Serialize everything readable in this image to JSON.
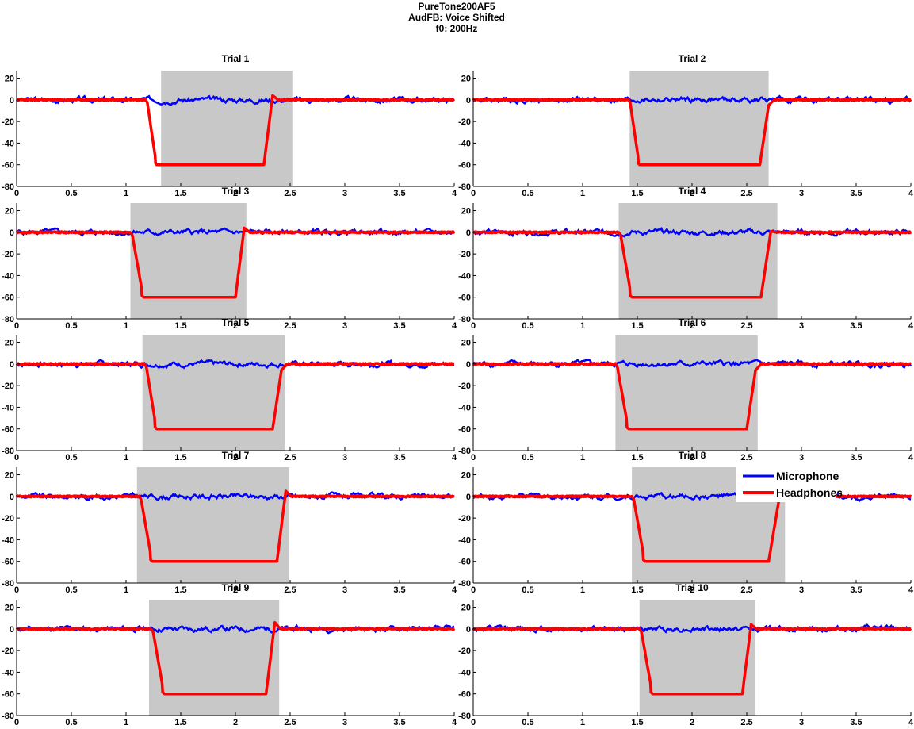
{
  "figure_title": [
    "PureTone200AF5",
    "AudFB: Voice Shifted",
    "f0: 200Hz"
  ],
  "legend": {
    "items": [
      {
        "label": "Microphone",
        "color": "#0000ff"
      },
      {
        "label": "Headphones",
        "color": "#ff0000"
      }
    ],
    "location": "inside trial 8 panel, top-right"
  },
  "chart_data": [
    {
      "type": "line",
      "title": "Trial 1",
      "xlim": [
        0,
        4
      ],
      "ylim": [
        -80,
        27
      ],
      "xticks": [
        "0",
        "0.5",
        "1",
        "1.5",
        "2",
        "2.5",
        "3",
        "3.5",
        "4"
      ],
      "yticks": [
        "20",
        "0",
        "-20",
        "-40",
        "-60",
        "-80"
      ],
      "shaded_x": [
        1.32,
        2.52
      ],
      "headphones": {
        "drop_start": 1.18,
        "drop_end": 1.28,
        "rise_start": 2.26,
        "rise_end": 2.34,
        "level": -60,
        "overshoot": 4
      },
      "series": [
        {
          "name": "Microphone",
          "color": "#0000ff"
        },
        {
          "name": "Headphones",
          "color": "#ff0000"
        }
      ]
    },
    {
      "type": "line",
      "title": "Trial 2",
      "xlim": [
        0,
        4
      ],
      "ylim": [
        -80,
        27
      ],
      "xticks": [
        "0",
        "0.5",
        "1",
        "1.5",
        "2",
        "2.5",
        "3",
        "3.5",
        "4"
      ],
      "yticks": [
        "20",
        "0",
        "-20",
        "-40",
        "-60",
        "-80"
      ],
      "shaded_x": [
        1.43,
        2.7
      ],
      "headphones": {
        "drop_start": 1.42,
        "drop_end": 1.52,
        "rise_start": 2.62,
        "rise_end": 2.7,
        "level": -60,
        "overshoot": -5
      },
      "series": [
        {
          "name": "Microphone",
          "color": "#0000ff"
        },
        {
          "name": "Headphones",
          "color": "#ff0000"
        }
      ]
    },
    {
      "type": "line",
      "title": "Trial 3",
      "xlim": [
        0,
        4
      ],
      "ylim": [
        -80,
        27
      ],
      "xticks": [
        "0",
        "0.5",
        "1",
        "1.5",
        "2",
        "2.5",
        "3",
        "3.5",
        "4"
      ],
      "yticks": [
        "20",
        "0",
        "-20",
        "-40",
        "-60",
        "-80"
      ],
      "shaded_x": [
        1.04,
        2.1
      ],
      "headphones": {
        "drop_start": 1.04,
        "drop_end": 1.16,
        "rise_start": 2.0,
        "rise_end": 2.08,
        "level": -60,
        "overshoot": 4
      },
      "series": [
        {
          "name": "Microphone",
          "color": "#0000ff"
        },
        {
          "name": "Headphones",
          "color": "#ff0000"
        }
      ]
    },
    {
      "type": "line",
      "title": "Trial 4",
      "xlim": [
        0,
        4
      ],
      "ylim": [
        -80,
        27
      ],
      "xticks": [
        "0",
        "0.5",
        "1",
        "1.5",
        "2",
        "2.5",
        "3",
        "3.5",
        "4"
      ],
      "yticks": [
        "20",
        "0",
        "-20",
        "-40",
        "-60",
        "-80"
      ],
      "shaded_x": [
        1.33,
        2.78
      ],
      "headphones": {
        "drop_start": 1.33,
        "drop_end": 1.45,
        "rise_start": 2.63,
        "rise_end": 2.72,
        "level": -60,
        "overshoot": 1
      },
      "series": [
        {
          "name": "Microphone",
          "color": "#0000ff"
        },
        {
          "name": "Headphones",
          "color": "#ff0000"
        }
      ]
    },
    {
      "type": "line",
      "title": "Trial 5",
      "xlim": [
        0,
        4
      ],
      "ylim": [
        -80,
        27
      ],
      "xticks": [
        "0",
        "0.5",
        "1",
        "1.5",
        "2",
        "2.5",
        "3",
        "3.5",
        "4"
      ],
      "yticks": [
        "20",
        "0",
        "-20",
        "-40",
        "-60",
        "-80"
      ],
      "shaded_x": [
        1.15,
        2.45
      ],
      "headphones": {
        "drop_start": 1.17,
        "drop_end": 1.28,
        "rise_start": 2.34,
        "rise_end": 2.42,
        "level": -60,
        "overshoot": -6
      },
      "series": [
        {
          "name": "Microphone",
          "color": "#0000ff"
        },
        {
          "name": "Headphones",
          "color": "#ff0000"
        }
      ]
    },
    {
      "type": "line",
      "title": "Trial 6",
      "xlim": [
        0,
        4
      ],
      "ylim": [
        -80,
        27
      ],
      "xticks": [
        "0",
        "0.5",
        "1",
        "1.5",
        "2",
        "2.5",
        "3",
        "3.5",
        "4"
      ],
      "yticks": [
        "20",
        "0",
        "-20",
        "-40",
        "-60",
        "-80"
      ],
      "shaded_x": [
        1.3,
        2.6
      ],
      "headphones": {
        "drop_start": 1.3,
        "drop_end": 1.42,
        "rise_start": 2.5,
        "rise_end": 2.58,
        "level": -60,
        "overshoot": -6
      },
      "series": [
        {
          "name": "Microphone",
          "color": "#0000ff"
        },
        {
          "name": "Headphones",
          "color": "#ff0000"
        }
      ]
    },
    {
      "type": "line",
      "title": "Trial 7",
      "xlim": [
        0,
        4
      ],
      "ylim": [
        -80,
        27
      ],
      "xticks": [
        "0",
        "0.5",
        "1",
        "1.5",
        "2",
        "2.5",
        "3",
        "3.5",
        "4"
      ],
      "yticks": [
        "20",
        "0",
        "-20",
        "-40",
        "-60",
        "-80"
      ],
      "shaded_x": [
        1.1,
        2.49
      ],
      "headphones": {
        "drop_start": 1.12,
        "drop_end": 1.24,
        "rise_start": 2.38,
        "rise_end": 2.46,
        "level": -60,
        "overshoot": 5
      },
      "series": [
        {
          "name": "Microphone",
          "color": "#0000ff"
        },
        {
          "name": "Headphones",
          "color": "#ff0000"
        }
      ]
    },
    {
      "type": "line",
      "title": "Trial 8",
      "xlim": [
        0,
        4
      ],
      "ylim": [
        -80,
        27
      ],
      "xticks": [
        "0",
        "0.5",
        "1",
        "1.5",
        "2",
        "2.5",
        "3",
        "3.5",
        "4"
      ],
      "yticks": [
        "20",
        "0",
        "-20",
        "-40",
        "-60",
        "-80"
      ],
      "shaded_x": [
        1.45,
        2.85
      ],
      "headphones": {
        "drop_start": 1.45,
        "drop_end": 1.57,
        "rise_start": 2.7,
        "rise_end": 2.8,
        "level": -60,
        "overshoot": 0
      },
      "series": [
        {
          "name": "Microphone",
          "color": "#0000ff"
        },
        {
          "name": "Headphones",
          "color": "#ff0000"
        }
      ]
    },
    {
      "type": "line",
      "title": "Trial 9",
      "xlim": [
        0,
        4
      ],
      "ylim": [
        -80,
        27
      ],
      "xticks": [
        "0",
        "0.5",
        "1",
        "1.5",
        "2",
        "2.5",
        "3",
        "3.5",
        "4"
      ],
      "yticks": [
        "20",
        "0",
        "-20",
        "-40",
        "-60",
        "-80"
      ],
      "shaded_x": [
        1.21,
        2.4
      ],
      "headphones": {
        "drop_start": 1.23,
        "drop_end": 1.35,
        "rise_start": 2.28,
        "rise_end": 2.36,
        "level": -60,
        "overshoot": 6
      },
      "series": [
        {
          "name": "Microphone",
          "color": "#0000ff"
        },
        {
          "name": "Headphones",
          "color": "#ff0000"
        }
      ]
    },
    {
      "type": "line",
      "title": "Trial 10",
      "xlim": [
        0,
        4
      ],
      "ylim": [
        -80,
        27
      ],
      "xticks": [
        "0",
        "0.5",
        "1",
        "1.5",
        "2",
        "2.5",
        "3",
        "3.5",
        "4"
      ],
      "yticks": [
        "20",
        "0",
        "-20",
        "-40",
        "-60",
        "-80"
      ],
      "shaded_x": [
        1.52,
        2.58
      ],
      "headphones": {
        "drop_start": 1.52,
        "drop_end": 1.64,
        "rise_start": 2.46,
        "rise_end": 2.54,
        "level": -60,
        "overshoot": 4
      },
      "series": [
        {
          "name": "Microphone",
          "color": "#0000ff"
        },
        {
          "name": "Headphones",
          "color": "#ff0000"
        }
      ]
    }
  ]
}
